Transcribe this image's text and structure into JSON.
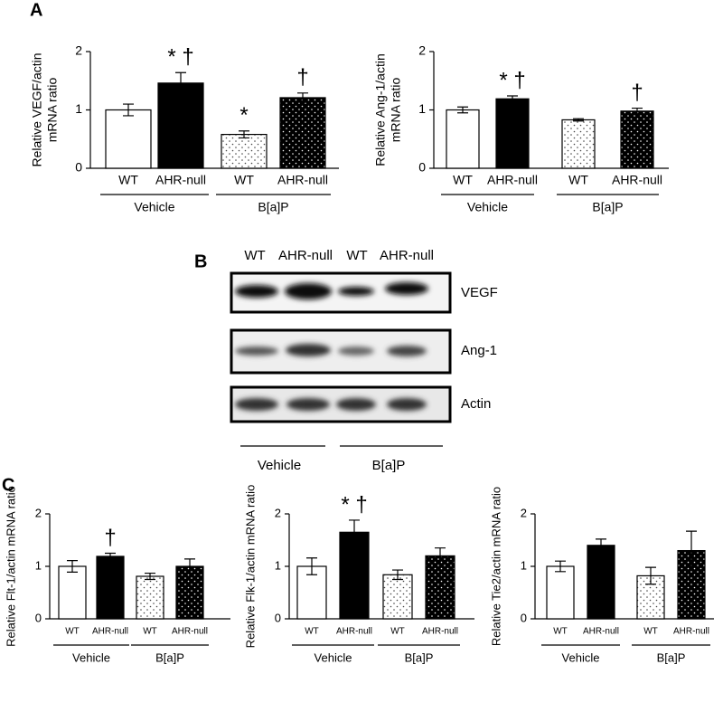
{
  "panels": {
    "A": "A",
    "B": "B",
    "C": "C"
  },
  "blot": {
    "lanes": [
      "WT",
      "AHR-null",
      "WT",
      "AHR-null"
    ],
    "bands": [
      "VEGF",
      "Ang-1",
      "Actin"
    ],
    "groups": [
      "Vehicle",
      "B[a]P"
    ]
  },
  "chart_data": [
    {
      "type": "bar",
      "ylabel": [
        "Relative VEGF/actin",
        "mRNA ratio"
      ],
      "categories": [
        "WT",
        "AHR-null",
        "WT",
        "AHR-null"
      ],
      "groups": [
        "Vehicle",
        "B[a]P"
      ],
      "values": [
        1.0,
        1.46,
        0.58,
        1.21
      ],
      "errors": [
        0.1,
        0.18,
        0.06,
        0.08
      ],
      "annotations": [
        null,
        "* †",
        "*",
        "†"
      ],
      "colors": [
        "#ffffff",
        "#000000",
        "#ffffff",
        "#000000"
      ],
      "patterns": [
        "none",
        "none",
        "dots",
        "dots"
      ],
      "ylim": [
        0,
        2
      ],
      "yticks": [
        0,
        1,
        2
      ]
    },
    {
      "type": "bar",
      "ylabel": [
        "Relative Ang-1/actin",
        "mRNA ratio"
      ],
      "categories": [
        "WT",
        "AHR-null",
        "WT",
        "AHR-null"
      ],
      "groups": [
        "Vehicle",
        "B[a]P"
      ],
      "values": [
        1.0,
        1.19,
        0.83,
        0.98
      ],
      "errors": [
        0.05,
        0.05,
        0.02,
        0.05
      ],
      "annotations": [
        null,
        "* †",
        null,
        "†"
      ],
      "colors": [
        "#ffffff",
        "#000000",
        "#ffffff",
        "#000000"
      ],
      "patterns": [
        "none",
        "none",
        "dots",
        "dots"
      ],
      "ylim": [
        0,
        2
      ],
      "yticks": [
        0,
        1,
        2
      ]
    },
    {
      "type": "bar",
      "ylabel": [
        "Relative Flt-1/actin mRNA ratio"
      ],
      "categories": [
        "WT",
        "AHR-null",
        "WT",
        "AHR-null"
      ],
      "groups": [
        "Vehicle",
        "B[a]P"
      ],
      "values": [
        1.0,
        1.19,
        0.81,
        1.0
      ],
      "errors": [
        0.11,
        0.06,
        0.06,
        0.14
      ],
      "annotations": [
        null,
        "†",
        null,
        null
      ],
      "colors": [
        "#ffffff",
        "#000000",
        "#ffffff",
        "#000000"
      ],
      "patterns": [
        "none",
        "none",
        "dots",
        "dots"
      ],
      "ylim": [
        0,
        2
      ],
      "yticks": [
        0,
        1,
        2
      ]
    },
    {
      "type": "bar",
      "ylabel": [
        "Relative Flk-1/actin mRNA ratio"
      ],
      "categories": [
        "WT",
        "AHR-null",
        "WT",
        "AHR-null"
      ],
      "groups": [
        "Vehicle",
        "B[a]P"
      ],
      "values": [
        1.0,
        1.65,
        0.84,
        1.2
      ],
      "errors": [
        0.16,
        0.23,
        0.09,
        0.15
      ],
      "annotations": [
        null,
        "* †",
        null,
        null
      ],
      "colors": [
        "#ffffff",
        "#000000",
        "#ffffff",
        "#000000"
      ],
      "patterns": [
        "none",
        "none",
        "dots",
        "dots"
      ],
      "ylim": [
        0,
        2
      ],
      "yticks": [
        0,
        1,
        2
      ]
    },
    {
      "type": "bar",
      "ylabel": [
        "Relative Tie2/actin mRNA ratio"
      ],
      "categories": [
        "WT",
        "AHR-null",
        "WT",
        "AHR-null"
      ],
      "groups": [
        "Vehicle",
        "B[a]P"
      ],
      "values": [
        1.0,
        1.4,
        0.82,
        1.3
      ],
      "errors": [
        0.1,
        0.12,
        0.16,
        0.37
      ],
      "annotations": [
        null,
        null,
        null,
        null
      ],
      "colors": [
        "#ffffff",
        "#000000",
        "#ffffff",
        "#000000"
      ],
      "patterns": [
        "none",
        "none",
        "dots",
        "dots"
      ],
      "ylim": [
        0,
        2
      ],
      "yticks": [
        0,
        1,
        2
      ]
    }
  ]
}
